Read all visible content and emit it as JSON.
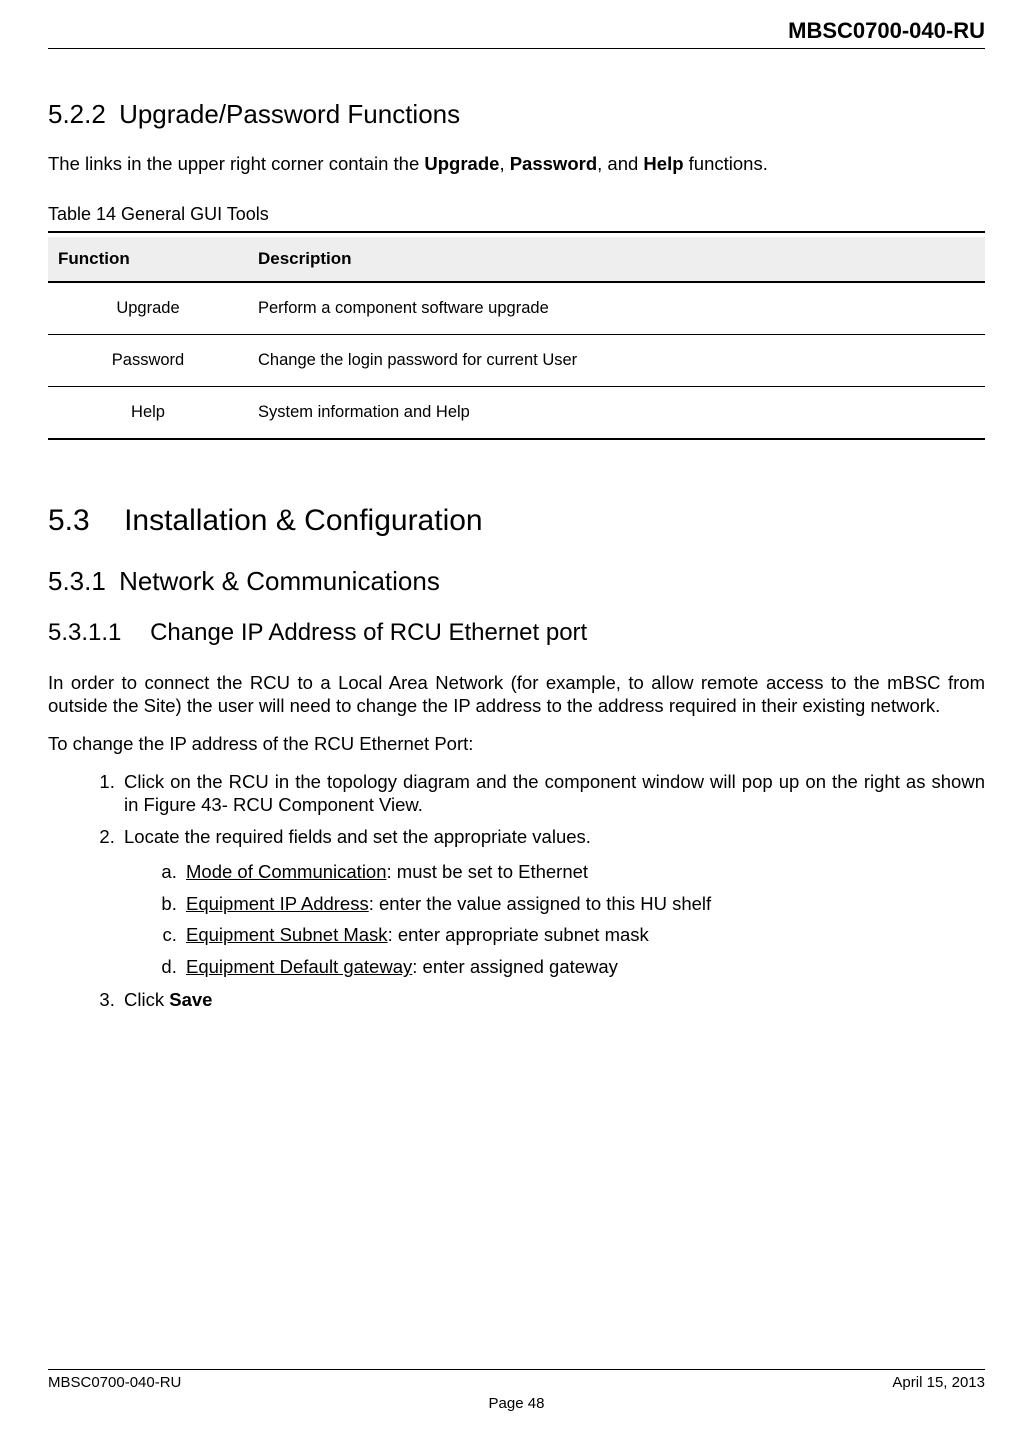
{
  "header": {
    "doc_code": "MBSC0700-040-RU"
  },
  "section_522": {
    "num": "5.2.2",
    "title": "Upgrade/Password Functions",
    "intro_pre": "The links in the upper right corner contain the ",
    "bold1": "Upgrade",
    "sep1": ", ",
    "bold2": "Password",
    "sep2": ", and ",
    "bold3": "Help",
    "intro_post": " functions."
  },
  "table14": {
    "caption": "Table 14 General GUI Tools",
    "head_func": "Function",
    "head_desc": "Description",
    "rows": [
      {
        "func": "Upgrade",
        "desc": "Perform a component   software upgrade"
      },
      {
        "func": "Password",
        "desc": "Change the login password for current User"
      },
      {
        "func": "Help",
        "desc": "System information and Help"
      }
    ]
  },
  "section_53": {
    "num": "5.3",
    "title": "Installation & Configuration"
  },
  "section_531": {
    "num": "5.3.1",
    "title": "Network & Communications"
  },
  "section_5311": {
    "num": "5.3.1.1",
    "title": "Change IP Address of RCU Ethernet port",
    "para1": "In order to connect the RCU to a Local Area Network (for example, to allow remote access to the mBSC from outside the Site) the user will need to change the IP address to the address required in their existing network.",
    "para2": "To change the IP address of the RCU Ethernet Port:",
    "step1": "Click on the RCU in the topology diagram and the component window will pop up on the right as shown in Figure 43- RCU Component View.",
    "step2": "Locate the required fields and set the appropriate values.",
    "sub_a_u": "Mode of Communication",
    "sub_a_t": ": must be set to Ethernet",
    "sub_b_u": "Equipment IP Address",
    "sub_b_t": ": enter the value assigned to this HU shelf",
    "sub_c_u": "Equipment Subnet Mask",
    "sub_c_t": ": enter appropriate subnet mask",
    "sub_d_u": "Equipment Default gateway",
    "sub_d_t": ": enter assigned gateway",
    "step3_pre": "Click ",
    "step3_b": "Save"
  },
  "footer": {
    "left": "MBSC0700-040-RU",
    "right": "April 15, 2013",
    "center": "Page 48"
  }
}
